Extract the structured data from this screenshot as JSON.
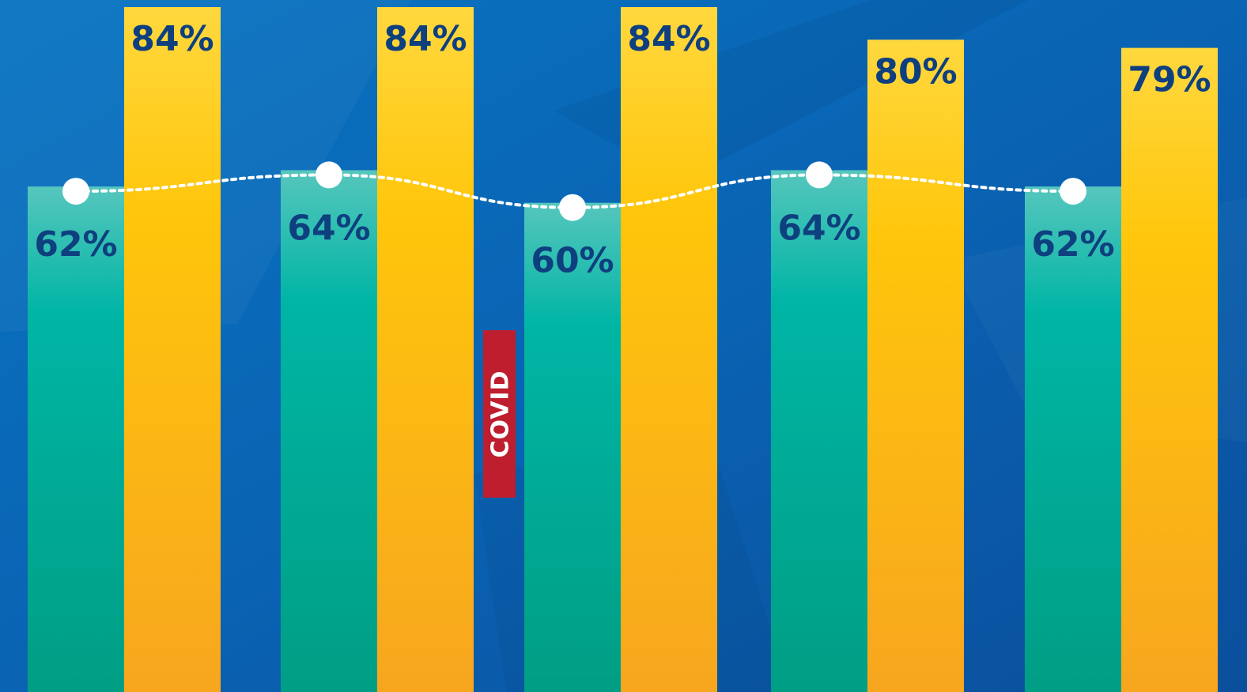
{
  "chart_data": {
    "type": "bar",
    "categories": [
      "",
      "",
      "",
      "",
      ""
    ],
    "series": [
      {
        "values": [
          62,
          64,
          60,
          64,
          62
        ],
        "labels": [
          "62%",
          "64%",
          "60%",
          "64%",
          "62%"
        ],
        "color": "#00a98f"
      },
      {
        "values": [
          84,
          84,
          84,
          80,
          79
        ],
        "labels": [
          "84%",
          "84%",
          "84%",
          "80%",
          "79%"
        ],
        "color": "#fbb11b"
      }
    ],
    "trend_line": {
      "series_index": 0,
      "style": "dotted",
      "color": "#ffffff"
    },
    "annotation": {
      "text": "COVID",
      "between_categories": [
        1,
        2
      ],
      "color": "#be1e2d"
    },
    "title": "",
    "xlabel": "",
    "ylabel": "",
    "ylim": [
      0,
      86
    ],
    "grid": false,
    "legend": "none",
    "background": "#0a5fb0"
  }
}
